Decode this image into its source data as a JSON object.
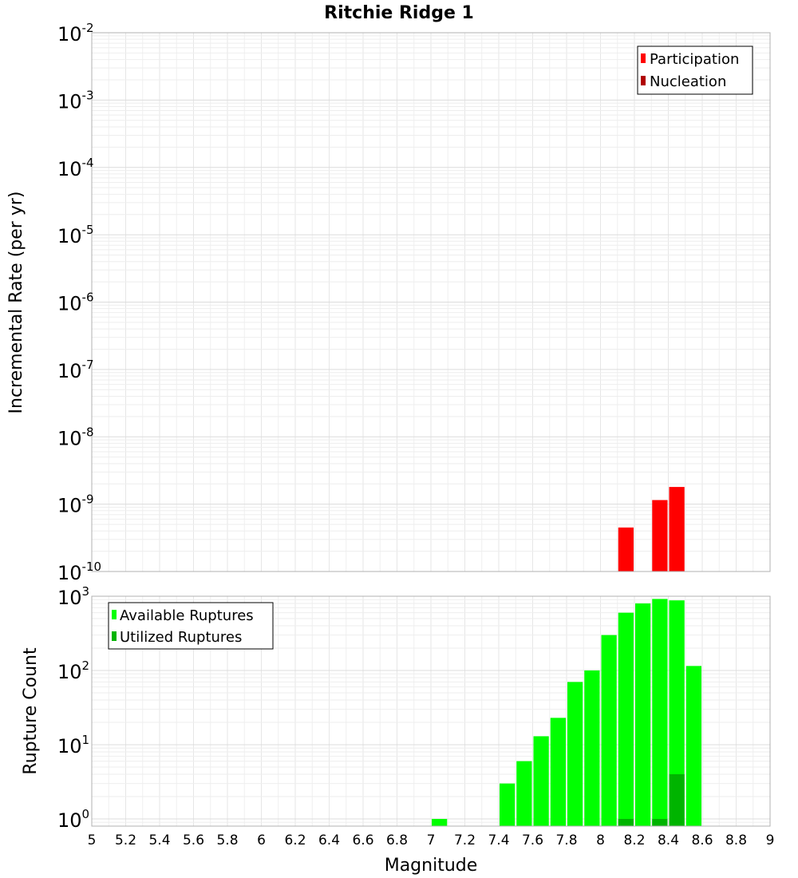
{
  "title": "Ritchie Ridge 1",
  "colors": {
    "participation": "#ff0000",
    "nucleation": "#b00000",
    "available": "#00ff00",
    "utilized": "#00b400"
  },
  "chart_data": [
    {
      "type": "bar",
      "title": "Ritchie Ridge 1",
      "xlabel": "",
      "ylabel": "Incremental Rate (per yr)",
      "yscale": "log",
      "ylim": [
        1e-10,
        0.01
      ],
      "xlim": [
        5,
        9
      ],
      "y_ticks": [
        {
          "base": "10",
          "exp": "-2"
        },
        {
          "base": "10",
          "exp": "-3"
        },
        {
          "base": "10",
          "exp": "-4"
        },
        {
          "base": "10",
          "exp": "-5"
        },
        {
          "base": "10",
          "exp": "-6"
        },
        {
          "base": "10",
          "exp": "-7"
        },
        {
          "base": "10",
          "exp": "-8"
        },
        {
          "base": "10",
          "exp": "-9"
        },
        {
          "base": "10",
          "exp": "-10"
        }
      ],
      "grid": true,
      "legend_position": "top-right",
      "series": [
        {
          "name": "Participation",
          "x": [
            8.15,
            8.35,
            8.45
          ],
          "values": [
            4.5e-10,
            1.15e-09,
            1.8e-09
          ]
        },
        {
          "name": "Nucleation",
          "x": [],
          "values": []
        }
      ]
    },
    {
      "type": "bar",
      "title": "",
      "xlabel": "Magnitude",
      "ylabel": "Rupture Count",
      "yscale": "log",
      "ylim": [
        0.8,
        1000
      ],
      "xlim": [
        5,
        9
      ],
      "y_ticks": [
        {
          "base": "10",
          "exp": "3"
        },
        {
          "base": "10",
          "exp": "2"
        },
        {
          "base": "10",
          "exp": "1"
        },
        {
          "base": "10",
          "exp": "0"
        }
      ],
      "x_ticks": [
        "5",
        "5.2",
        "5.4",
        "5.6",
        "5.8",
        "6",
        "6.2",
        "6.4",
        "6.6",
        "6.8",
        "7",
        "7.2",
        "7.4",
        "7.6",
        "7.8",
        "8",
        "8.2",
        "8.4",
        "8.6",
        "8.8",
        "9"
      ],
      "grid": true,
      "legend_position": "top-left",
      "series": [
        {
          "name": "Available Ruptures",
          "x": [
            7.05,
            7.45,
            7.55,
            7.65,
            7.75,
            7.85,
            7.95,
            8.05,
            8.15,
            8.25,
            8.35,
            8.45,
            8.55
          ],
          "values": [
            1,
            3,
            6,
            13,
            23,
            70,
            100,
            300,
            600,
            800,
            920,
            880,
            115
          ]
        },
        {
          "name": "Utilized Ruptures",
          "x": [
            8.15,
            8.35,
            8.45
          ],
          "values": [
            1,
            1,
            4
          ]
        }
      ]
    }
  ]
}
